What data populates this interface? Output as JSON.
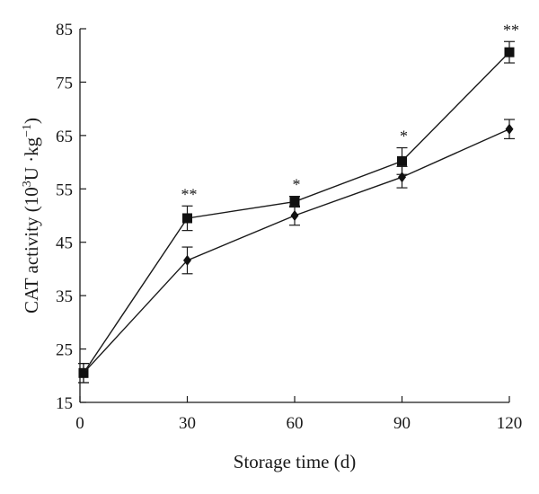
{
  "chart_data": {
    "type": "line",
    "xlabel": "Storage time (d)",
    "ylabel_parts": [
      "CAT activity (10",
      "3",
      "U ·kg",
      "−1",
      ")"
    ],
    "xlim": [
      0,
      120
    ],
    "ylim": [
      15,
      85
    ],
    "xticks": [
      0,
      30,
      60,
      90,
      120
    ],
    "yticks": [
      15,
      25,
      35,
      45,
      55,
      65,
      75,
      85
    ],
    "grid": false,
    "x": [
      1,
      30,
      60,
      90,
      120
    ],
    "series": [
      {
        "marker": "square",
        "values": [
          20.5,
          49.5,
          52.6,
          60.2,
          80.6
        ],
        "errors": [
          1.8,
          2.3,
          1.0,
          2.5,
          2.0
        ]
      },
      {
        "marker": "diamond",
        "values": [
          20.5,
          41.6,
          50.0,
          57.2,
          66.2
        ],
        "errors": [
          1.8,
          2.5,
          1.8,
          2.0,
          1.8
        ]
      }
    ],
    "annotations": [
      {
        "x": 30,
        "text": "**"
      },
      {
        "x": 60,
        "text": "*"
      },
      {
        "x": 90,
        "text": "*"
      },
      {
        "x": 120,
        "text": "**"
      }
    ]
  }
}
